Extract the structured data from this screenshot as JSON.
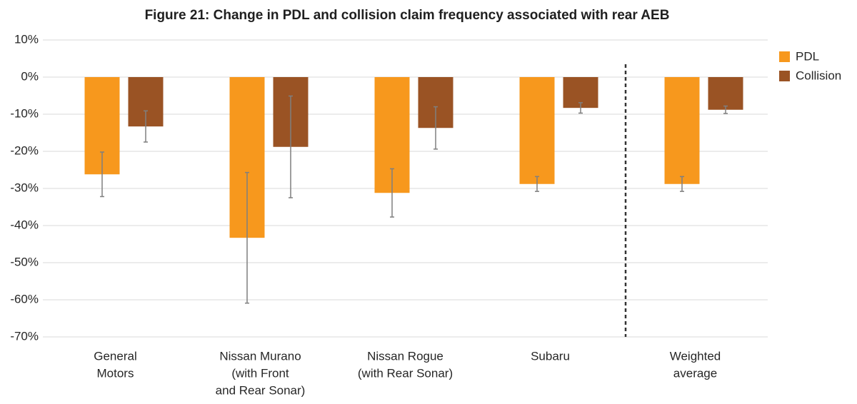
{
  "chart_data": {
    "type": "bar",
    "title": "Figure 21: Change in PDL and collision claim frequency associated with rear AEB",
    "categories": [
      [
        "General",
        "Motors"
      ],
      [
        "Nissan Murano",
        "(with Front",
        "and Rear Sonar)"
      ],
      [
        "Nissan Rogue",
        "(with Rear Sonar)"
      ],
      [
        "Subaru"
      ],
      [
        "Weighted",
        "average"
      ]
    ],
    "series": [
      {
        "name": "PDL",
        "color": "#f7981d",
        "values": [
          -26.2,
          -43.3,
          -31.2,
          -28.8,
          -28.8
        ],
        "errors": [
          6,
          17.6,
          6.5,
          2,
          2
        ]
      },
      {
        "name": "Collision",
        "color": "#9a5324",
        "values": [
          -13.3,
          -18.8,
          -13.7,
          -8.3,
          -8.8
        ],
        "errors": [
          4.2,
          13.7,
          5.7,
          1.4,
          1
        ]
      }
    ],
    "ylim": [
      -70,
      10
    ],
    "yticks": [
      {
        "value": -70,
        "label": "-70%"
      },
      {
        "value": -60,
        "label": "-60%"
      },
      {
        "value": -50,
        "label": "-50%"
      },
      {
        "value": -40,
        "label": "-40%"
      },
      {
        "value": -30,
        "label": "-30%"
      },
      {
        "value": -20,
        "label": "-20%"
      },
      {
        "value": -10,
        "label": "-10%"
      },
      {
        "value": 0,
        "label": "0%"
      },
      {
        "value": 10,
        "label": "10%"
      }
    ],
    "grid": true,
    "legend": "right",
    "divider_before_category": 4
  }
}
